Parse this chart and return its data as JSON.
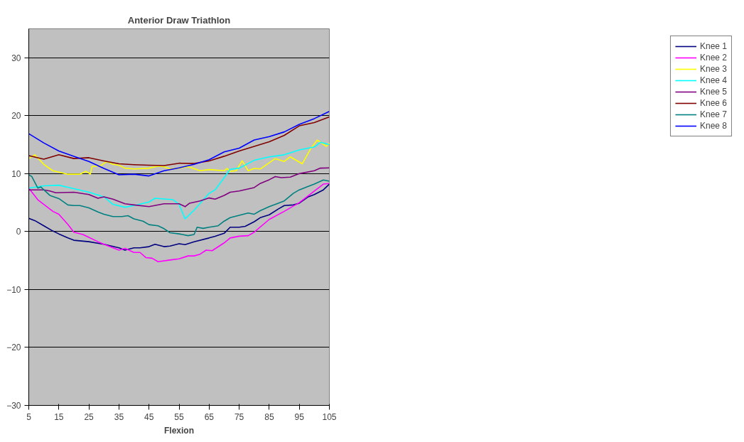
{
  "chart_data": {
    "type": "line",
    "title": "Anterior Draw Triathlon",
    "xlabel": "Flexion",
    "xlim": [
      5,
      105
    ],
    "ylim": [
      -30,
      35
    ],
    "xticks": [
      5,
      15,
      25,
      35,
      45,
      55,
      65,
      75,
      85,
      95,
      105
    ],
    "yticks": [
      -30,
      -20,
      -10,
      0,
      10,
      20,
      30
    ],
    "grid": "y",
    "legend": "right",
    "marker": "none",
    "line_style": "solid",
    "series": [
      {
        "name": "Knee 1",
        "color": "#000080",
        "x": [
          5,
          7,
          10,
          13,
          15,
          18,
          20,
          25,
          30,
          35,
          37,
          40,
          42,
          45,
          47,
          50,
          52,
          55,
          57,
          60,
          65,
          67,
          70,
          72,
          75,
          77,
          80,
          82,
          85,
          88,
          90,
          93,
          95,
          98,
          100,
          103,
          105
        ],
        "values": [
          2.3,
          1.9,
          1.0,
          0.1,
          -0.4,
          -1.1,
          -1.5,
          -1.75,
          -2.2,
          -2.8,
          -3.2,
          -2.8,
          -2.8,
          -2.6,
          -2.2,
          -2.6,
          -2.5,
          -2.1,
          -2.25,
          -1.75,
          -1.1,
          -0.8,
          -0.3,
          0.75,
          0.75,
          0.9,
          1.7,
          2.4,
          2.9,
          3.9,
          4.5,
          4.6,
          4.9,
          6.0,
          6.4,
          7.2,
          8.2
        ]
      },
      {
        "name": "Knee 2",
        "color": "#ff00ff",
        "x": [
          5,
          8,
          10,
          13,
          15,
          18,
          20,
          23,
          25,
          28,
          30,
          35,
          37,
          40,
          42,
          44,
          46,
          48,
          52,
          55,
          58,
          60,
          62,
          64,
          66,
          70,
          72,
          75,
          78,
          80,
          85,
          90,
          95,
          98,
          100,
          103,
          105
        ],
        "values": [
          7.5,
          5.5,
          4.7,
          3.5,
          3.0,
          1.25,
          -0.1,
          -0.5,
          -1.0,
          -1.75,
          -2.2,
          -3.2,
          -2.9,
          -3.6,
          -3.6,
          -4.5,
          -4.6,
          -5.2,
          -4.9,
          -4.7,
          -4.2,
          -4.2,
          -3.9,
          -3.2,
          -3.3,
          -1.95,
          -1.1,
          -0.8,
          -0.7,
          -0.1,
          2.1,
          3.5,
          5.0,
          6.2,
          7.0,
          8.2,
          8.3
        ]
      },
      {
        "name": "Knee 3",
        "color": "#ffff00",
        "x": [
          5,
          7,
          10,
          13,
          15,
          18,
          22,
          24,
          25.5,
          26,
          29,
          31,
          33,
          35,
          37,
          40,
          45,
          48,
          50,
          52,
          55,
          58,
          62,
          65,
          70,
          71,
          72,
          74,
          76,
          78,
          80,
          82,
          87,
          90,
          92,
          96,
          99,
          101,
          104,
          105
        ],
        "values": [
          12.6,
          13.25,
          11.6,
          10.5,
          10.25,
          9.9,
          9.9,
          10.4,
          9.9,
          11.2,
          11.4,
          12.1,
          11.6,
          11.45,
          10.95,
          10.8,
          10.95,
          11.3,
          11.2,
          10.8,
          10.95,
          11.2,
          10.5,
          10.7,
          10.5,
          10.9,
          10.4,
          10.5,
          12.2,
          10.5,
          10.9,
          10.8,
          12.6,
          12.1,
          12.9,
          11.7,
          14.5,
          15.8,
          14.7,
          15.3
        ]
      },
      {
        "name": "Knee 4",
        "color": "#00ffff",
        "x": [
          5,
          10,
          15,
          20,
          25,
          30,
          33,
          37,
          40,
          45,
          47,
          53,
          55,
          57,
          60,
          65,
          67,
          70,
          72,
          75,
          80,
          85,
          90,
          95,
          100,
          102,
          105
        ],
        "values": [
          7.5,
          7.9,
          8.0,
          7.4,
          6.8,
          6.0,
          4.7,
          4.2,
          4.5,
          5.1,
          5.75,
          5.5,
          4.7,
          2.2,
          3.7,
          6.6,
          7.2,
          9.3,
          10.75,
          10.95,
          12.3,
          12.9,
          13.25,
          14.1,
          14.6,
          15.4,
          15.0
        ]
      },
      {
        "name": "Knee 5",
        "color": "#800080",
        "x": [
          5,
          10,
          12,
          14,
          20,
          25,
          28,
          30,
          33,
          37,
          40,
          45,
          50,
          55,
          57,
          58.5,
          62,
          65,
          67,
          70,
          72,
          75,
          80,
          82,
          85,
          87,
          89,
          92,
          95,
          100,
          102,
          105
        ],
        "values": [
          7.2,
          7.2,
          7.0,
          6.7,
          6.8,
          6.4,
          5.75,
          6.0,
          5.6,
          4.8,
          4.6,
          4.3,
          4.8,
          4.8,
          4.3,
          4.9,
          5.3,
          5.8,
          5.6,
          6.25,
          6.8,
          7.0,
          7.6,
          8.3,
          8.95,
          9.5,
          9.3,
          9.4,
          10.0,
          10.5,
          10.95,
          11.0
        ]
      },
      {
        "name": "Knee 6",
        "color": "#800000",
        "x": [
          5,
          10,
          15,
          20,
          25,
          30,
          35,
          40,
          45,
          50,
          55,
          60,
          65,
          70,
          75,
          80,
          85,
          90,
          95,
          100,
          105
        ],
        "values": [
          13.1,
          12.5,
          13.25,
          12.6,
          12.75,
          12.2,
          11.7,
          11.55,
          11.45,
          11.4,
          11.8,
          11.75,
          12.2,
          13.0,
          13.9,
          14.7,
          15.5,
          16.6,
          18.25,
          18.8,
          19.8
        ]
      },
      {
        "name": "Knee 7",
        "color": "#008080",
        "x": [
          5,
          6,
          8,
          9,
          12,
          15,
          18,
          20,
          22,
          25,
          28,
          30,
          33,
          36,
          38,
          40,
          43,
          45,
          48,
          50,
          52,
          55,
          58,
          60,
          61,
          63,
          65,
          68,
          70,
          72,
          75,
          78,
          80,
          82,
          85,
          88,
          90,
          93,
          95,
          98,
          100,
          103,
          105
        ],
        "values": [
          9.8,
          9.5,
          7.5,
          7.7,
          6.25,
          5.7,
          4.6,
          4.5,
          4.5,
          4.1,
          3.4,
          3.0,
          2.6,
          2.6,
          2.75,
          2.2,
          1.8,
          1.2,
          1.0,
          0.5,
          -0.2,
          -0.4,
          -0.7,
          -0.5,
          0.75,
          0.55,
          0.75,
          1.0,
          1.8,
          2.4,
          2.8,
          3.2,
          3.0,
          3.6,
          4.3,
          4.9,
          5.3,
          6.6,
          7.2,
          7.8,
          8.2,
          8.9,
          8.7
        ]
      },
      {
        "name": "Knee 8",
        "color": "#0000ff",
        "x": [
          5,
          10,
          15,
          20,
          25,
          30,
          35,
          40,
          45,
          50,
          55,
          60,
          65,
          70,
          75,
          80,
          85,
          90,
          95,
          100,
          105
        ],
        "values": [
          16.9,
          15.3,
          13.9,
          13.0,
          12.1,
          10.9,
          9.8,
          9.9,
          9.6,
          10.5,
          11.0,
          11.6,
          12.4,
          13.75,
          14.4,
          15.8,
          16.4,
          17.2,
          18.5,
          19.5,
          20.75
        ]
      }
    ]
  }
}
